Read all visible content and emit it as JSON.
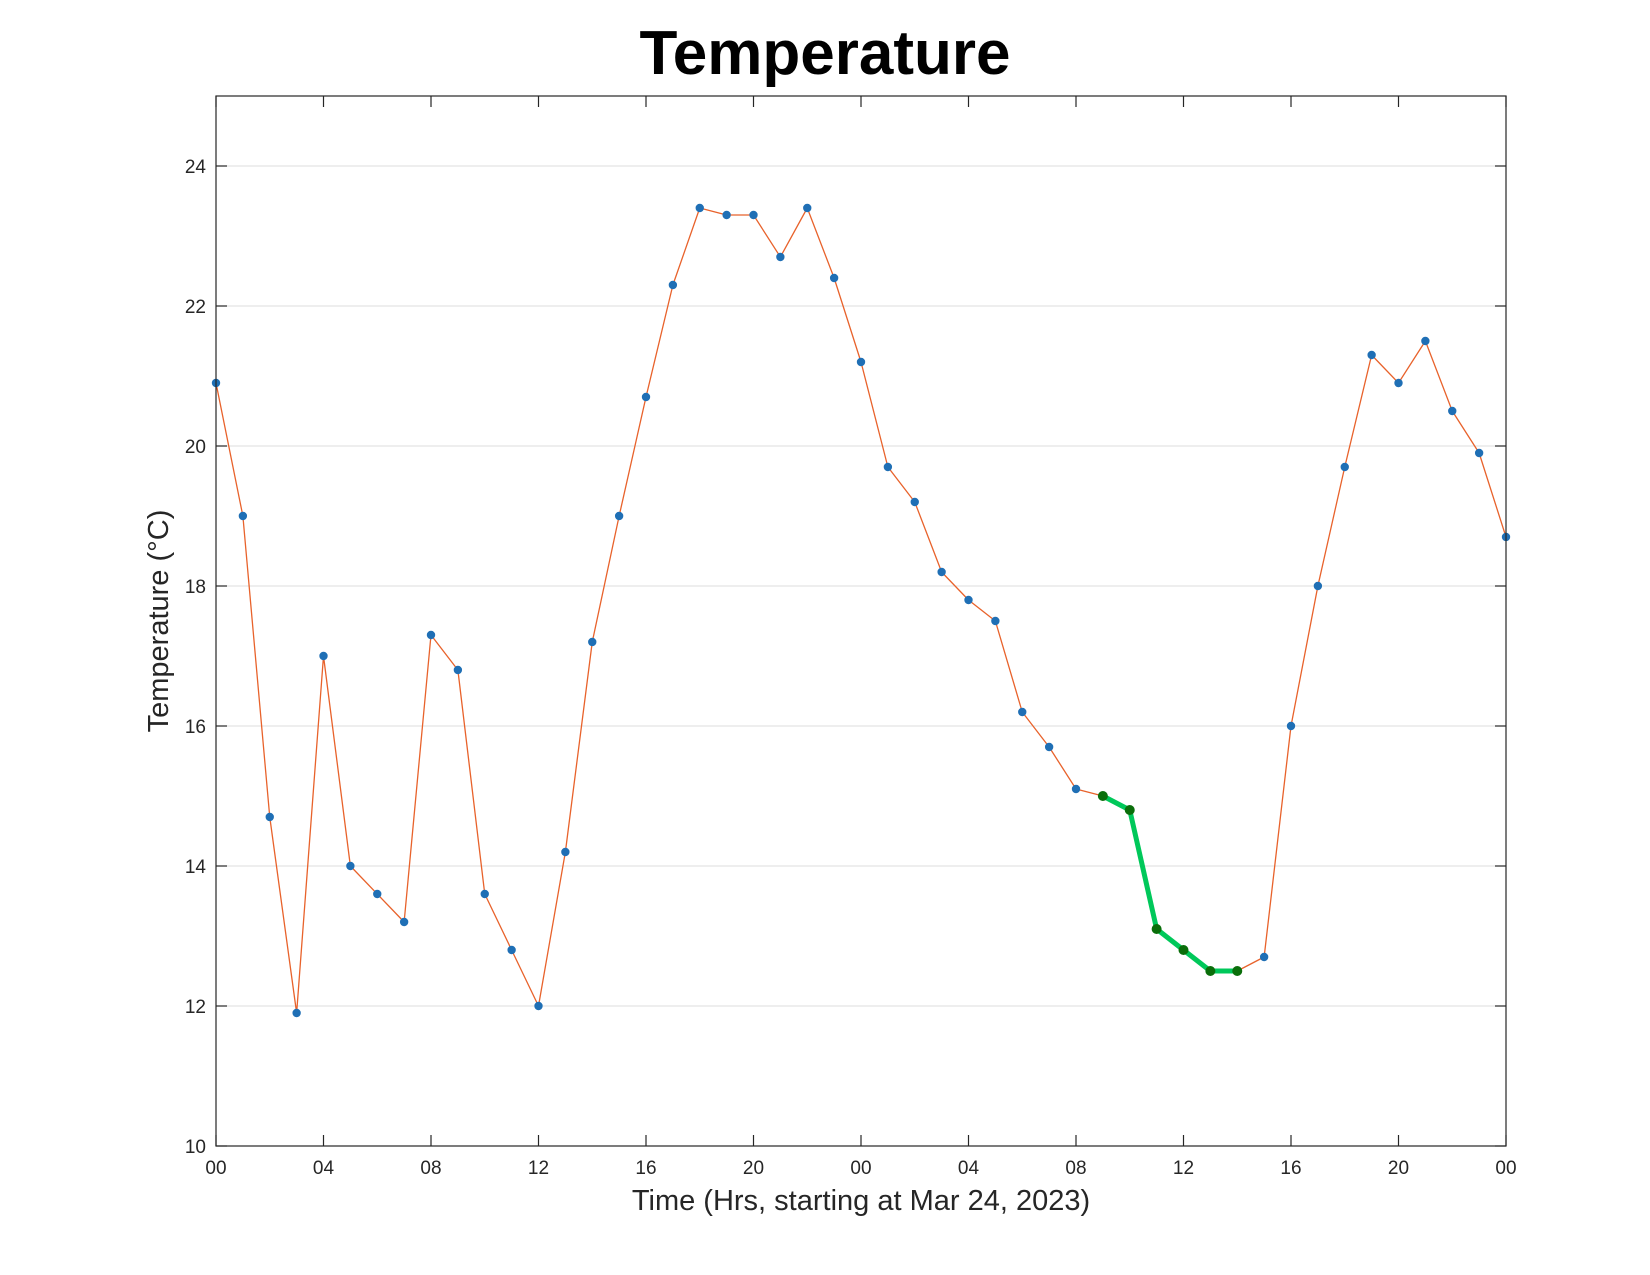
{
  "chart_data": {
    "type": "line",
    "title": "Temperature",
    "xlabel": "Time (Hrs, starting at Mar 24, 2023)",
    "ylabel": "Temperature (°C)",
    "ylim": [
      10,
      25
    ],
    "xlim": [
      0,
      48
    ],
    "grid": "y",
    "x_ticks": [
      {
        "hour": 0,
        "label": "00"
      },
      {
        "hour": 4,
        "label": "04"
      },
      {
        "hour": 8,
        "label": "08"
      },
      {
        "hour": 12,
        "label": "12"
      },
      {
        "hour": 16,
        "label": "16"
      },
      {
        "hour": 20,
        "label": "20"
      },
      {
        "hour": 24,
        "label": "00"
      },
      {
        "hour": 28,
        "label": "04"
      },
      {
        "hour": 32,
        "label": "08"
      },
      {
        "hour": 36,
        "label": "12"
      },
      {
        "hour": 40,
        "label": "16"
      },
      {
        "hour": 44,
        "label": "20"
      },
      {
        "hour": 48,
        "label": "00"
      }
    ],
    "y_ticks": [
      10,
      12,
      14,
      16,
      18,
      20,
      22,
      24
    ],
    "series": [
      {
        "line_color": "#e8622b",
        "marker_color": "#1f6fb5",
        "x": [
          0,
          1,
          2,
          3,
          4,
          5,
          6,
          7,
          8,
          9,
          10,
          11,
          12,
          13,
          14,
          15,
          16,
          17,
          18,
          19,
          20,
          21,
          22,
          23,
          24,
          25,
          26,
          27,
          28,
          29,
          30,
          31,
          32,
          33,
          34,
          35,
          36,
          37,
          38,
          39,
          40,
          41,
          42,
          43,
          44,
          45,
          46,
          47,
          48
        ],
        "values": [
          20.9,
          19.0,
          14.7,
          11.9,
          17.0,
          14.0,
          13.6,
          13.2,
          17.3,
          16.8,
          13.6,
          12.8,
          12.0,
          14.2,
          17.2,
          19.0,
          20.7,
          22.3,
          23.4,
          23.3,
          23.3,
          22.7,
          23.4,
          22.4,
          21.2,
          19.7,
          19.2,
          18.2,
          17.8,
          17.5,
          16.2,
          15.7,
          15.1,
          15.0,
          14.8,
          13.1,
          12.8,
          12.5,
          12.5,
          12.7,
          16.0,
          18.0,
          19.7,
          21.3,
          20.9,
          21.5,
          20.5,
          19.9,
          18.7
        ]
      },
      {
        "line_color": "#00c85a",
        "marker_color": "#0a6e0a",
        "x": [
          33,
          34,
          35,
          36,
          37,
          38
        ],
        "values": [
          15.0,
          14.8,
          13.1,
          12.8,
          12.5,
          12.5
        ]
      }
    ]
  }
}
